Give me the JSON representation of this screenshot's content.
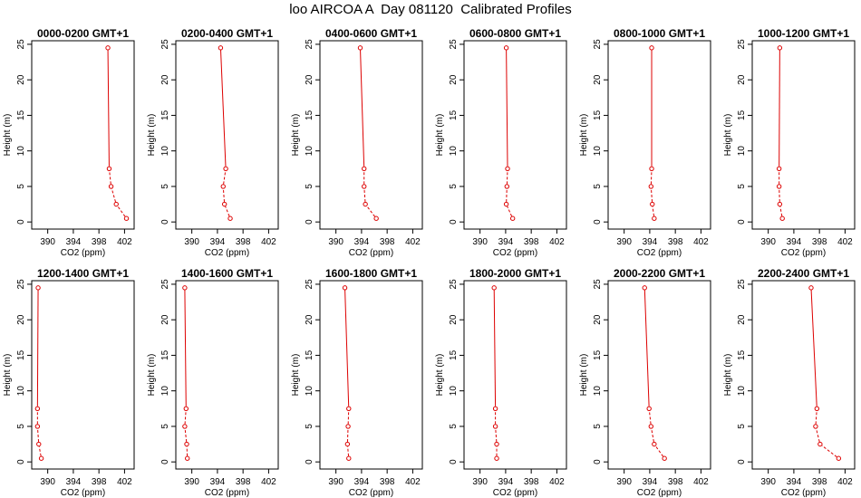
{
  "chart_data": {
    "type": "line",
    "title": "loo AIRCOA A  Day 081120  Calibrated Profiles",
    "xlabel": "CO2 (ppm)",
    "ylabel": "Height (m)",
    "xlim": [
      387.5,
      403.5
    ],
    "ylim": [
      -1,
      25.5
    ],
    "xticks": [
      "390",
      "394",
      "398",
      "402"
    ],
    "yticks": [
      "0",
      "5",
      "10",
      "15",
      "20",
      "25"
    ],
    "heights": [
      0.5,
      2.5,
      5,
      7.5,
      24.5
    ],
    "line_color": "#dd0000",
    "panels": [
      {
        "title": "0000-0200 GMT+1",
        "co2": [
          402.3,
          400.7,
          399.9,
          399.6,
          399.4
        ]
      },
      {
        "title": "0200-0400 GMT+1",
        "co2": [
          396.0,
          395.1,
          394.9,
          395.3,
          394.5
        ]
      },
      {
        "title": "0400-0600 GMT+1",
        "co2": [
          396.3,
          394.6,
          394.4,
          394.4,
          393.8
        ]
      },
      {
        "title": "0600-0800 GMT+1",
        "co2": [
          395.1,
          394.1,
          394.2,
          394.3,
          394.1
        ]
      },
      {
        "title": "0800-1000 GMT+1",
        "co2": [
          394.7,
          394.4,
          394.2,
          394.3,
          394.3
        ]
      },
      {
        "title": "1000-1200 GMT+1",
        "co2": [
          392.2,
          391.8,
          391.7,
          391.7,
          391.8
        ]
      },
      {
        "title": "1200-1400 GMT+1",
        "co2": [
          389.0,
          388.6,
          388.4,
          388.4,
          388.5
        ]
      },
      {
        "title": "1400-1600 GMT+1",
        "co2": [
          389.3,
          389.2,
          388.9,
          389.1,
          388.9
        ]
      },
      {
        "title": "1600-1800 GMT+1",
        "co2": [
          392.0,
          391.8,
          391.9,
          392.0,
          391.4
        ]
      },
      {
        "title": "1800-2000 GMT+1",
        "co2": [
          392.6,
          392.6,
          392.4,
          392.4,
          392.2
        ]
      },
      {
        "title": "2000-2200 GMT+1",
        "co2": [
          396.3,
          394.7,
          394.2,
          393.9,
          393.2
        ]
      },
      {
        "title": "2200-2400 GMT+1",
        "co2": [
          401.0,
          398.1,
          397.4,
          397.6,
          396.7
        ]
      }
    ]
  }
}
